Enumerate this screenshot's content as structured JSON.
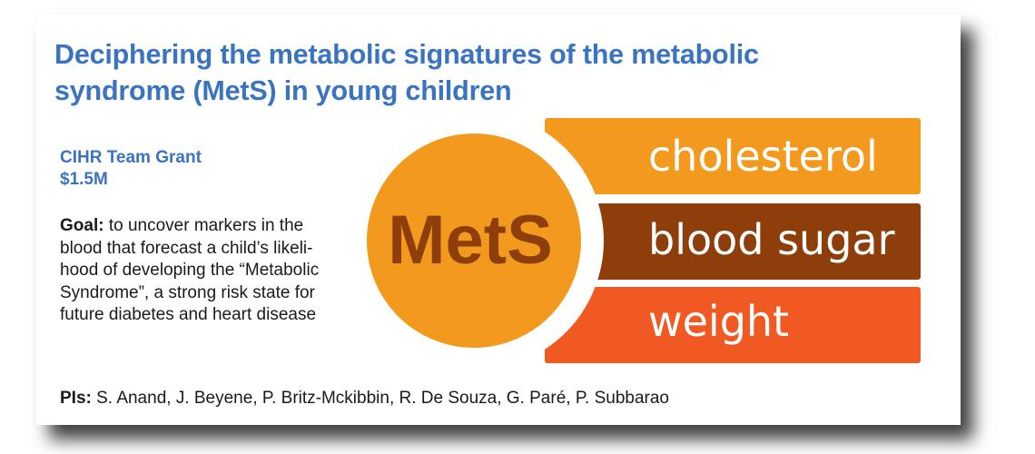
{
  "title_line1": "Deciphering the metabolic signatures of the metabolic",
  "title_line2": "syndrome (MetS) in young children",
  "grant": {
    "name": "CIHR Team Grant",
    "amount": "$1.5M"
  },
  "goal": {
    "label": "Goal:",
    "lines": [
      " to uncover markers in the",
      "blood that forecast a child’s likeli-",
      "hood of developing the “Metabolic",
      "Syndrome”, a strong risk state for",
      "future diabetes and heart disease"
    ]
  },
  "pis": {
    "label": "PIs:",
    "names": " S. Anand, J. Beyene, P. Britz-Mckibbin, R. De Souza, G. Paré, P. Subbarao"
  },
  "graphic": {
    "center_label": "MetS",
    "bars": [
      {
        "label": "cholesterol",
        "color": "#f39a1e"
      },
      {
        "label": "blood sugar",
        "color": "#8e3e0a"
      },
      {
        "label": "weight",
        "color": "#f05a22"
      }
    ],
    "circle_color": "#f39a1e",
    "center_text_color": "#8e3e0a",
    "title_color": "#3a74c1"
  }
}
